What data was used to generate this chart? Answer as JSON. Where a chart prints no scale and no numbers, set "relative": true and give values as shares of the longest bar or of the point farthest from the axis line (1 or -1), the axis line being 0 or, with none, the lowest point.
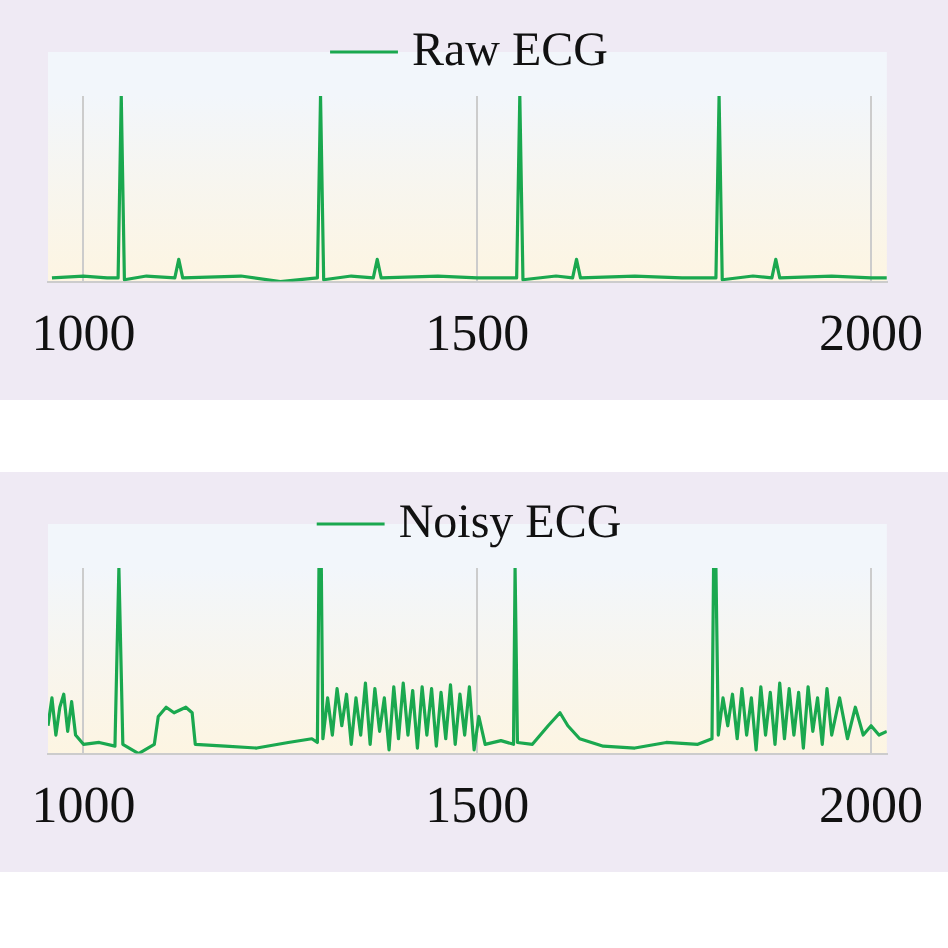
{
  "chart_data": [
    {
      "type": "line",
      "relative": true,
      "xlim": [
        955,
        2020
      ],
      "xticks": [
        1000,
        1500,
        2000
      ],
      "grid": "x",
      "legend": "top",
      "marker": "none",
      "line_style": "solid",
      "x": [
        960,
        1000,
        1030,
        1044,
        1048,
        1052,
        1080,
        1116,
        1121,
        1126,
        1200,
        1250,
        1297,
        1301,
        1305,
        1340,
        1368,
        1373,
        1378,
        1450,
        1500,
        1550,
        1554,
        1558,
        1600,
        1621,
        1626,
        1631,
        1700,
        1760,
        1803,
        1807,
        1811,
        1850,
        1874,
        1879,
        1884,
        1950,
        2000,
        2020
      ],
      "series": [
        {
          "name": "Raw ECG",
          "color": "#1aa84f",
          "values": [
            0.02,
            0.03,
            0.02,
            0.02,
            1,
            0.01,
            0.03,
            0.02,
            0.12,
            0.02,
            0.03,
            0,
            0.02,
            1,
            0.01,
            0.03,
            0.02,
            0.12,
            0.02,
            0.03,
            0.02,
            0.02,
            1,
            0.01,
            0.03,
            0.02,
            0.12,
            0.02,
            0.03,
            0.02,
            0.02,
            1,
            0.01,
            0.03,
            0.02,
            0.12,
            0.02,
            0.03,
            0.02,
            0.02
          ]
        }
      ]
    },
    {
      "type": "line",
      "relative": true,
      "xlim": [
        955,
        2020
      ],
      "xticks": [
        1000,
        1500,
        2000
      ],
      "grid": "x",
      "legend": "top",
      "marker": "none",
      "line_style": "solid",
      "x": [
        955,
        960,
        965,
        970,
        975,
        980,
        985,
        990,
        1000,
        1020,
        1040,
        1045,
        1050,
        1070,
        1090,
        1095,
        1105,
        1115,
        1130,
        1138,
        1142,
        1180,
        1220,
        1260,
        1290,
        1297,
        1299,
        1302,
        1304,
        1310,
        1316,
        1322,
        1328,
        1334,
        1340,
        1346,
        1352,
        1358,
        1364,
        1370,
        1376,
        1382,
        1388,
        1394,
        1400,
        1406,
        1412,
        1418,
        1424,
        1430,
        1436,
        1442,
        1448,
        1454,
        1460,
        1466,
        1472,
        1478,
        1484,
        1490,
        1496,
        1502,
        1510,
        1530,
        1546,
        1548,
        1551,
        1570,
        1590,
        1605,
        1615,
        1630,
        1660,
        1700,
        1740,
        1780,
        1798,
        1800,
        1803,
        1806,
        1812,
        1818,
        1824,
        1830,
        1836,
        1842,
        1848,
        1854,
        1860,
        1866,
        1872,
        1878,
        1884,
        1890,
        1896,
        1902,
        1908,
        1914,
        1920,
        1926,
        1932,
        1938,
        1944,
        1950,
        1960,
        1970,
        1980,
        1990,
        2000,
        2010,
        2020
      ],
      "series": [
        {
          "name": "Noisy ECG",
          "color": "#1aa84f",
          "values": [
            0.15,
            0.3,
            0.1,
            0.25,
            0.32,
            0.12,
            0.28,
            0.1,
            0.05,
            0.06,
            0.04,
            1,
            0.05,
            0,
            0.05,
            0.2,
            0.25,
            0.22,
            0.25,
            0.22,
            0.05,
            0.04,
            0.03,
            0.06,
            0.08,
            0.06,
            1,
            1,
            0.08,
            0.3,
            0.1,
            0.35,
            0.15,
            0.32,
            0.05,
            0.3,
            0.1,
            0.38,
            0.05,
            0.35,
            0.12,
            0.3,
            0.02,
            0.36,
            0.08,
            0.38,
            0.1,
            0.34,
            0.03,
            0.36,
            0.1,
            0.35,
            0.04,
            0.33,
            0.08,
            0.37,
            0.05,
            0.32,
            0.1,
            0.36,
            0.02,
            0.2,
            0.05,
            0.07,
            0.05,
            1,
            0.06,
            0.05,
            0.15,
            0.22,
            0.15,
            0.08,
            0.04,
            0.03,
            0.06,
            0.05,
            0.08,
            1,
            1,
            0.1,
            0.3,
            0.15,
            0.32,
            0.08,
            0.35,
            0.1,
            0.3,
            0.02,
            0.36,
            0.1,
            0.33,
            0.05,
            0.38,
            0.08,
            0.35,
            0.1,
            0.33,
            0.03,
            0.36,
            0.12,
            0.3,
            0.05,
            0.35,
            0.1,
            0.3,
            0.08,
            0.25,
            0.1,
            0.15,
            0.1,
            0.12
          ]
        }
      ]
    }
  ]
}
